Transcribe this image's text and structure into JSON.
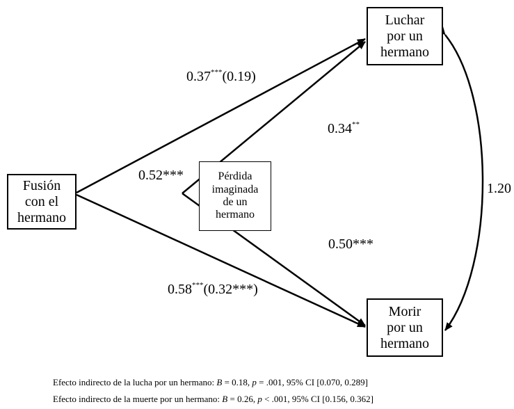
{
  "nodes": {
    "fusion": "Fusión\ncon el\nhermano",
    "luchar": "Luchar\npor un\nhermano",
    "perdida": "Pérdida\nimaginada\nde un\nhermano",
    "morir": "Morir\npor un\nhermano"
  },
  "edges": {
    "fusion_luchar": {
      "coef": "0.37",
      "sig": "***",
      "paren": "(0.19)"
    },
    "fusion_perdida": {
      "text": "0.52***"
    },
    "perdida_luchar": {
      "coef": "0.34",
      "sig": "**"
    },
    "perdida_morir": {
      "text": "0.50***"
    },
    "fusion_morir": {
      "coef": "0.58",
      "sig": "***",
      "paren": "(0.32***)"
    },
    "luchar_morir": {
      "text": "1.20"
    }
  },
  "footnotes": {
    "lucha": {
      "prefix": "Efecto indirecto de la lucha por un hermano: ",
      "b_label": "B",
      "b_value": " = 0.18, ",
      "p_label": "p",
      "p_value": " = .001, 95% CI [0.070, 0.289]"
    },
    "muerte": {
      "prefix": "Efecto indirecto de la muerte por un hermano: ",
      "b_label": "B",
      "b_value": " = 0.26, ",
      "p_label": "p",
      "p_value": " < .001, 95% CI [0.156, 0.362]"
    }
  }
}
